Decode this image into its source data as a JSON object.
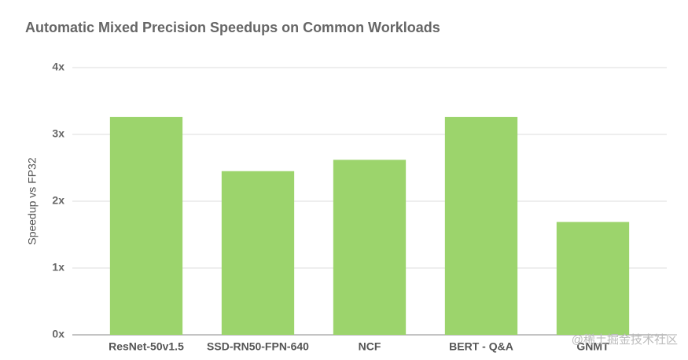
{
  "chart_data": {
    "type": "bar",
    "title": "Automatic Mixed Precision Speedups on Common Workloads",
    "y_label": "Speedup vs FP32",
    "categories": [
      "ResNet-50v1.5",
      "SSD-RN50-FPN-640",
      "NCF",
      "BERT - Q&A",
      "GNMT"
    ],
    "values": [
      3.26,
      2.45,
      2.62,
      3.26,
      1.69
    ],
    "color": "#9cd46c",
    "ylim": [
      0,
      4
    ],
    "yticks": [
      {
        "value": 0,
        "label": "0x"
      },
      {
        "value": 1,
        "label": "1x"
      },
      {
        "value": 2,
        "label": "2x"
      },
      {
        "value": 3,
        "label": "3x"
      },
      {
        "value": 4,
        "label": "4x"
      }
    ],
    "grid": true,
    "watermark": "@稀土掘金技术社区"
  }
}
